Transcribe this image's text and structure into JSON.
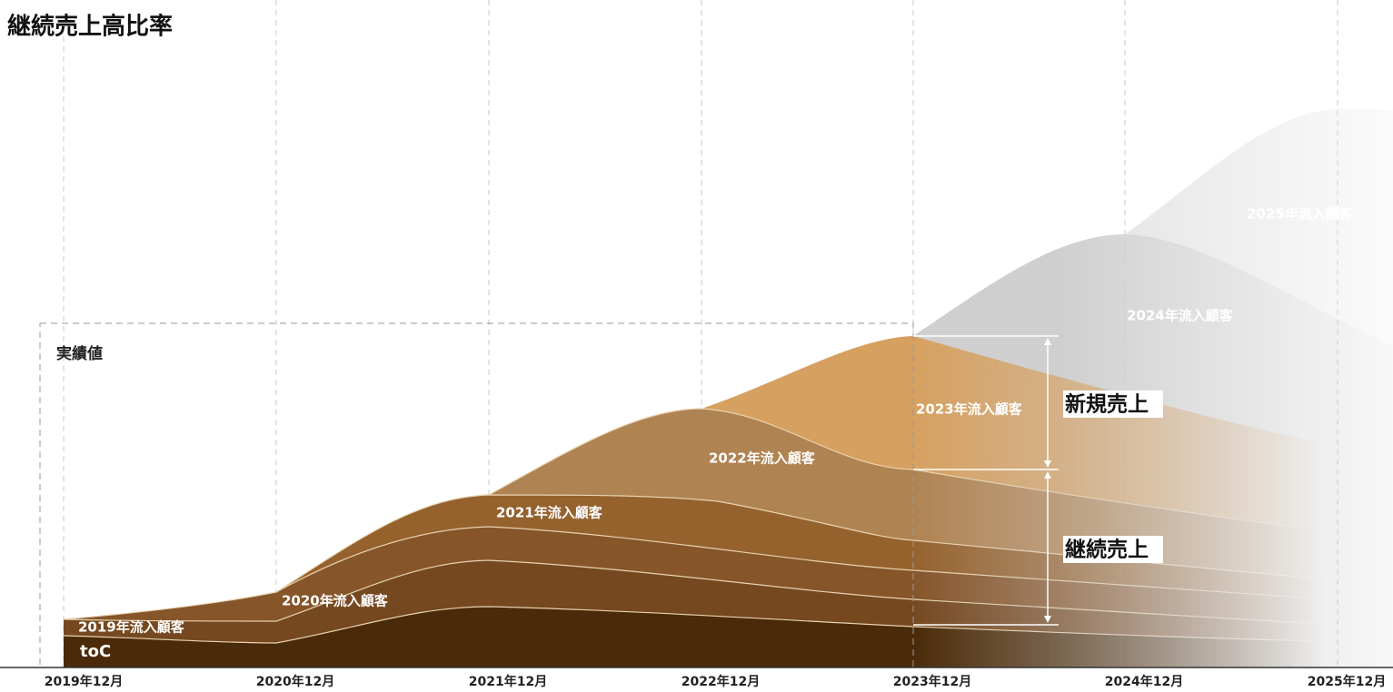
{
  "title": "継続売上高比率",
  "region_label": "実績値",
  "x_labels": [
    "2019年12月",
    "2020年12月",
    "2021年12月",
    "2022年12月",
    "2023年12月",
    "2024年12月",
    "2025年12月"
  ],
  "layers": [
    {
      "label": "toC"
    },
    {
      "label": "2019年流入顧客"
    },
    {
      "label": "2020年流入顧客"
    },
    {
      "label": "2021年流入顧客"
    },
    {
      "label": "2022年流入顧客"
    },
    {
      "label": "2023年流入顧客"
    },
    {
      "label": "2024年流入顧客"
    },
    {
      "label": "2025年流入顧客"
    }
  ],
  "annotations": {
    "new_sales": "新規売上",
    "recurring_sales": "継続売上"
  }
}
